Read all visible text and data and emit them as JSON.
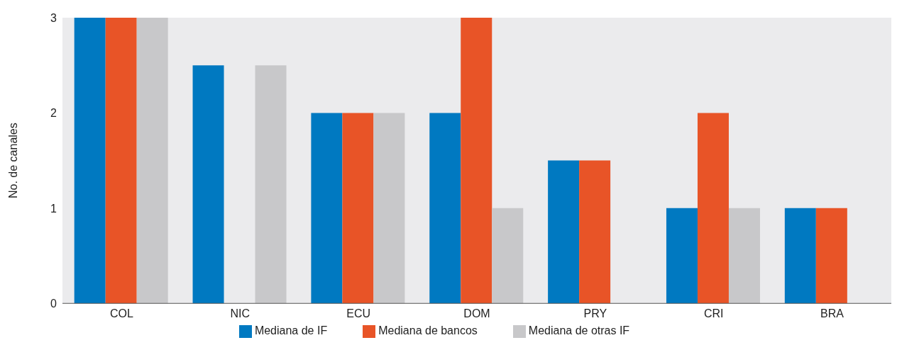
{
  "chart_data": {
    "type": "bar",
    "ylabel": "No. de canales",
    "categories": [
      "COL",
      "NIC",
      "ECU",
      "DOM",
      "PRY",
      "CRI",
      "BRA"
    ],
    "series": [
      {
        "name": "Mediana de IF",
        "color": "#0079c1",
        "values": [
          3,
          2.5,
          2,
          2,
          1.5,
          1,
          1
        ]
      },
      {
        "name": "Mediana de bancos",
        "color": "#e85427",
        "values": [
          3,
          null,
          2,
          3,
          1.5,
          2,
          1
        ]
      },
      {
        "name": "Mediana de otras IF",
        "color": "#c8c8ca",
        "values": [
          3,
          2.5,
          2,
          1,
          null,
          1,
          null
        ]
      }
    ],
    "ylim": [
      0,
      3
    ],
    "yticks": [
      0,
      1,
      2,
      3
    ],
    "legend": "bottom"
  }
}
